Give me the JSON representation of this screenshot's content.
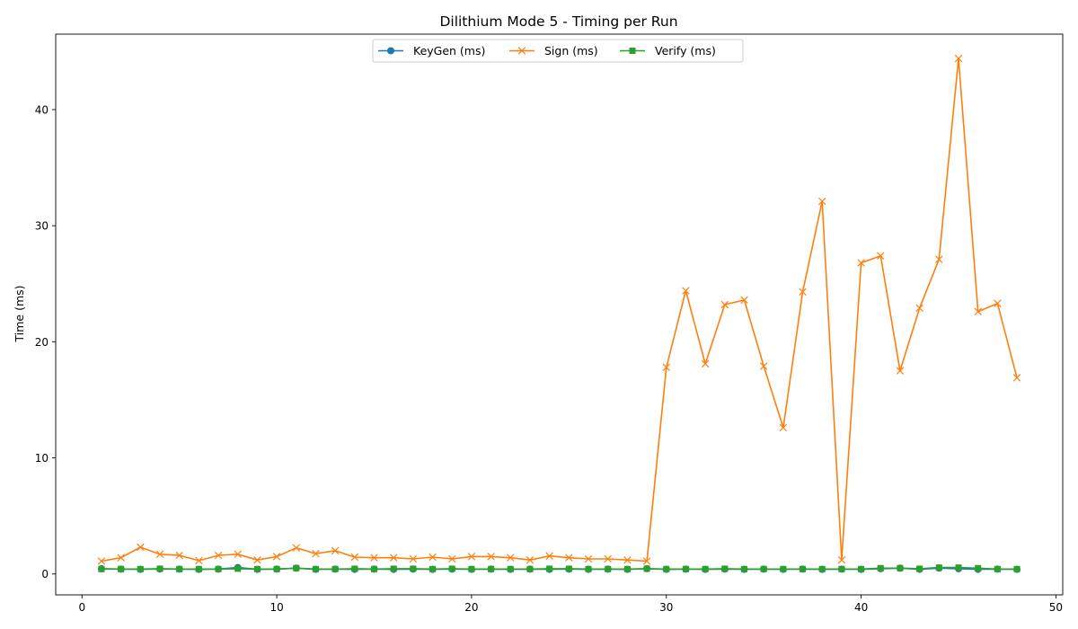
{
  "chart_data": {
    "type": "line",
    "title": "Dilithium Mode 5 - Timing per Run",
    "xlabel": "",
    "ylabel": "Time (ms)",
    "xlim": [
      -1.35,
      50.35
    ],
    "ylim": [
      -1.8,
      46.5
    ],
    "xticks": [
      0,
      10,
      20,
      30,
      40,
      50
    ],
    "yticks": [
      0,
      10,
      20,
      30,
      40
    ],
    "grid": false,
    "legend_position": "top-center",
    "x": [
      1,
      2,
      3,
      4,
      5,
      6,
      7,
      8,
      9,
      10,
      11,
      12,
      13,
      14,
      15,
      16,
      17,
      18,
      19,
      20,
      21,
      22,
      23,
      24,
      25,
      26,
      27,
      28,
      29,
      30,
      31,
      32,
      33,
      34,
      35,
      36,
      37,
      38,
      39,
      40,
      41,
      42,
      43,
      44,
      45,
      46,
      47,
      48
    ],
    "series": [
      {
        "name": "KeyGen (ms)",
        "color": "#1f77b4",
        "marker": "circle",
        "values": [
          0.45,
          0.42,
          0.4,
          0.43,
          0.42,
          0.4,
          0.42,
          0.55,
          0.4,
          0.42,
          0.5,
          0.4,
          0.42,
          0.4,
          0.42,
          0.4,
          0.42,
          0.4,
          0.42,
          0.4,
          0.42,
          0.4,
          0.42,
          0.4,
          0.42,
          0.4,
          0.42,
          0.4,
          0.45,
          0.4,
          0.42,
          0.4,
          0.42,
          0.4,
          0.42,
          0.4,
          0.42,
          0.4,
          0.42,
          0.4,
          0.45,
          0.5,
          0.4,
          0.5,
          0.45,
          0.4,
          0.42,
          0.4
        ]
      },
      {
        "name": "Sign (ms)",
        "color": "#ff7f0e",
        "marker": "x",
        "values": [
          1.1,
          1.4,
          2.3,
          1.7,
          1.6,
          1.15,
          1.6,
          1.7,
          1.2,
          1.5,
          2.25,
          1.75,
          2.0,
          1.45,
          1.4,
          1.4,
          1.3,
          1.45,
          1.3,
          1.5,
          1.5,
          1.4,
          1.2,
          1.55,
          1.4,
          1.3,
          1.3,
          1.2,
          1.1,
          17.8,
          24.4,
          18.1,
          23.2,
          23.6,
          17.9,
          12.6,
          24.3,
          32.1,
          1.2,
          26.8,
          27.4,
          17.5,
          22.9,
          27.1,
          44.4,
          22.6,
          23.3,
          16.9
        ]
      },
      {
        "name": "Verify (ms)",
        "color": "#2ca02c",
        "marker": "square",
        "values": [
          0.42,
          0.42,
          0.42,
          0.45,
          0.42,
          0.42,
          0.42,
          0.45,
          0.42,
          0.42,
          0.5,
          0.42,
          0.42,
          0.45,
          0.42,
          0.45,
          0.45,
          0.42,
          0.45,
          0.42,
          0.42,
          0.42,
          0.42,
          0.45,
          0.45,
          0.42,
          0.42,
          0.42,
          0.45,
          0.42,
          0.42,
          0.42,
          0.45,
          0.42,
          0.42,
          0.42,
          0.42,
          0.42,
          0.42,
          0.42,
          0.5,
          0.5,
          0.45,
          0.55,
          0.55,
          0.5,
          0.42,
          0.42
        ]
      }
    ]
  }
}
